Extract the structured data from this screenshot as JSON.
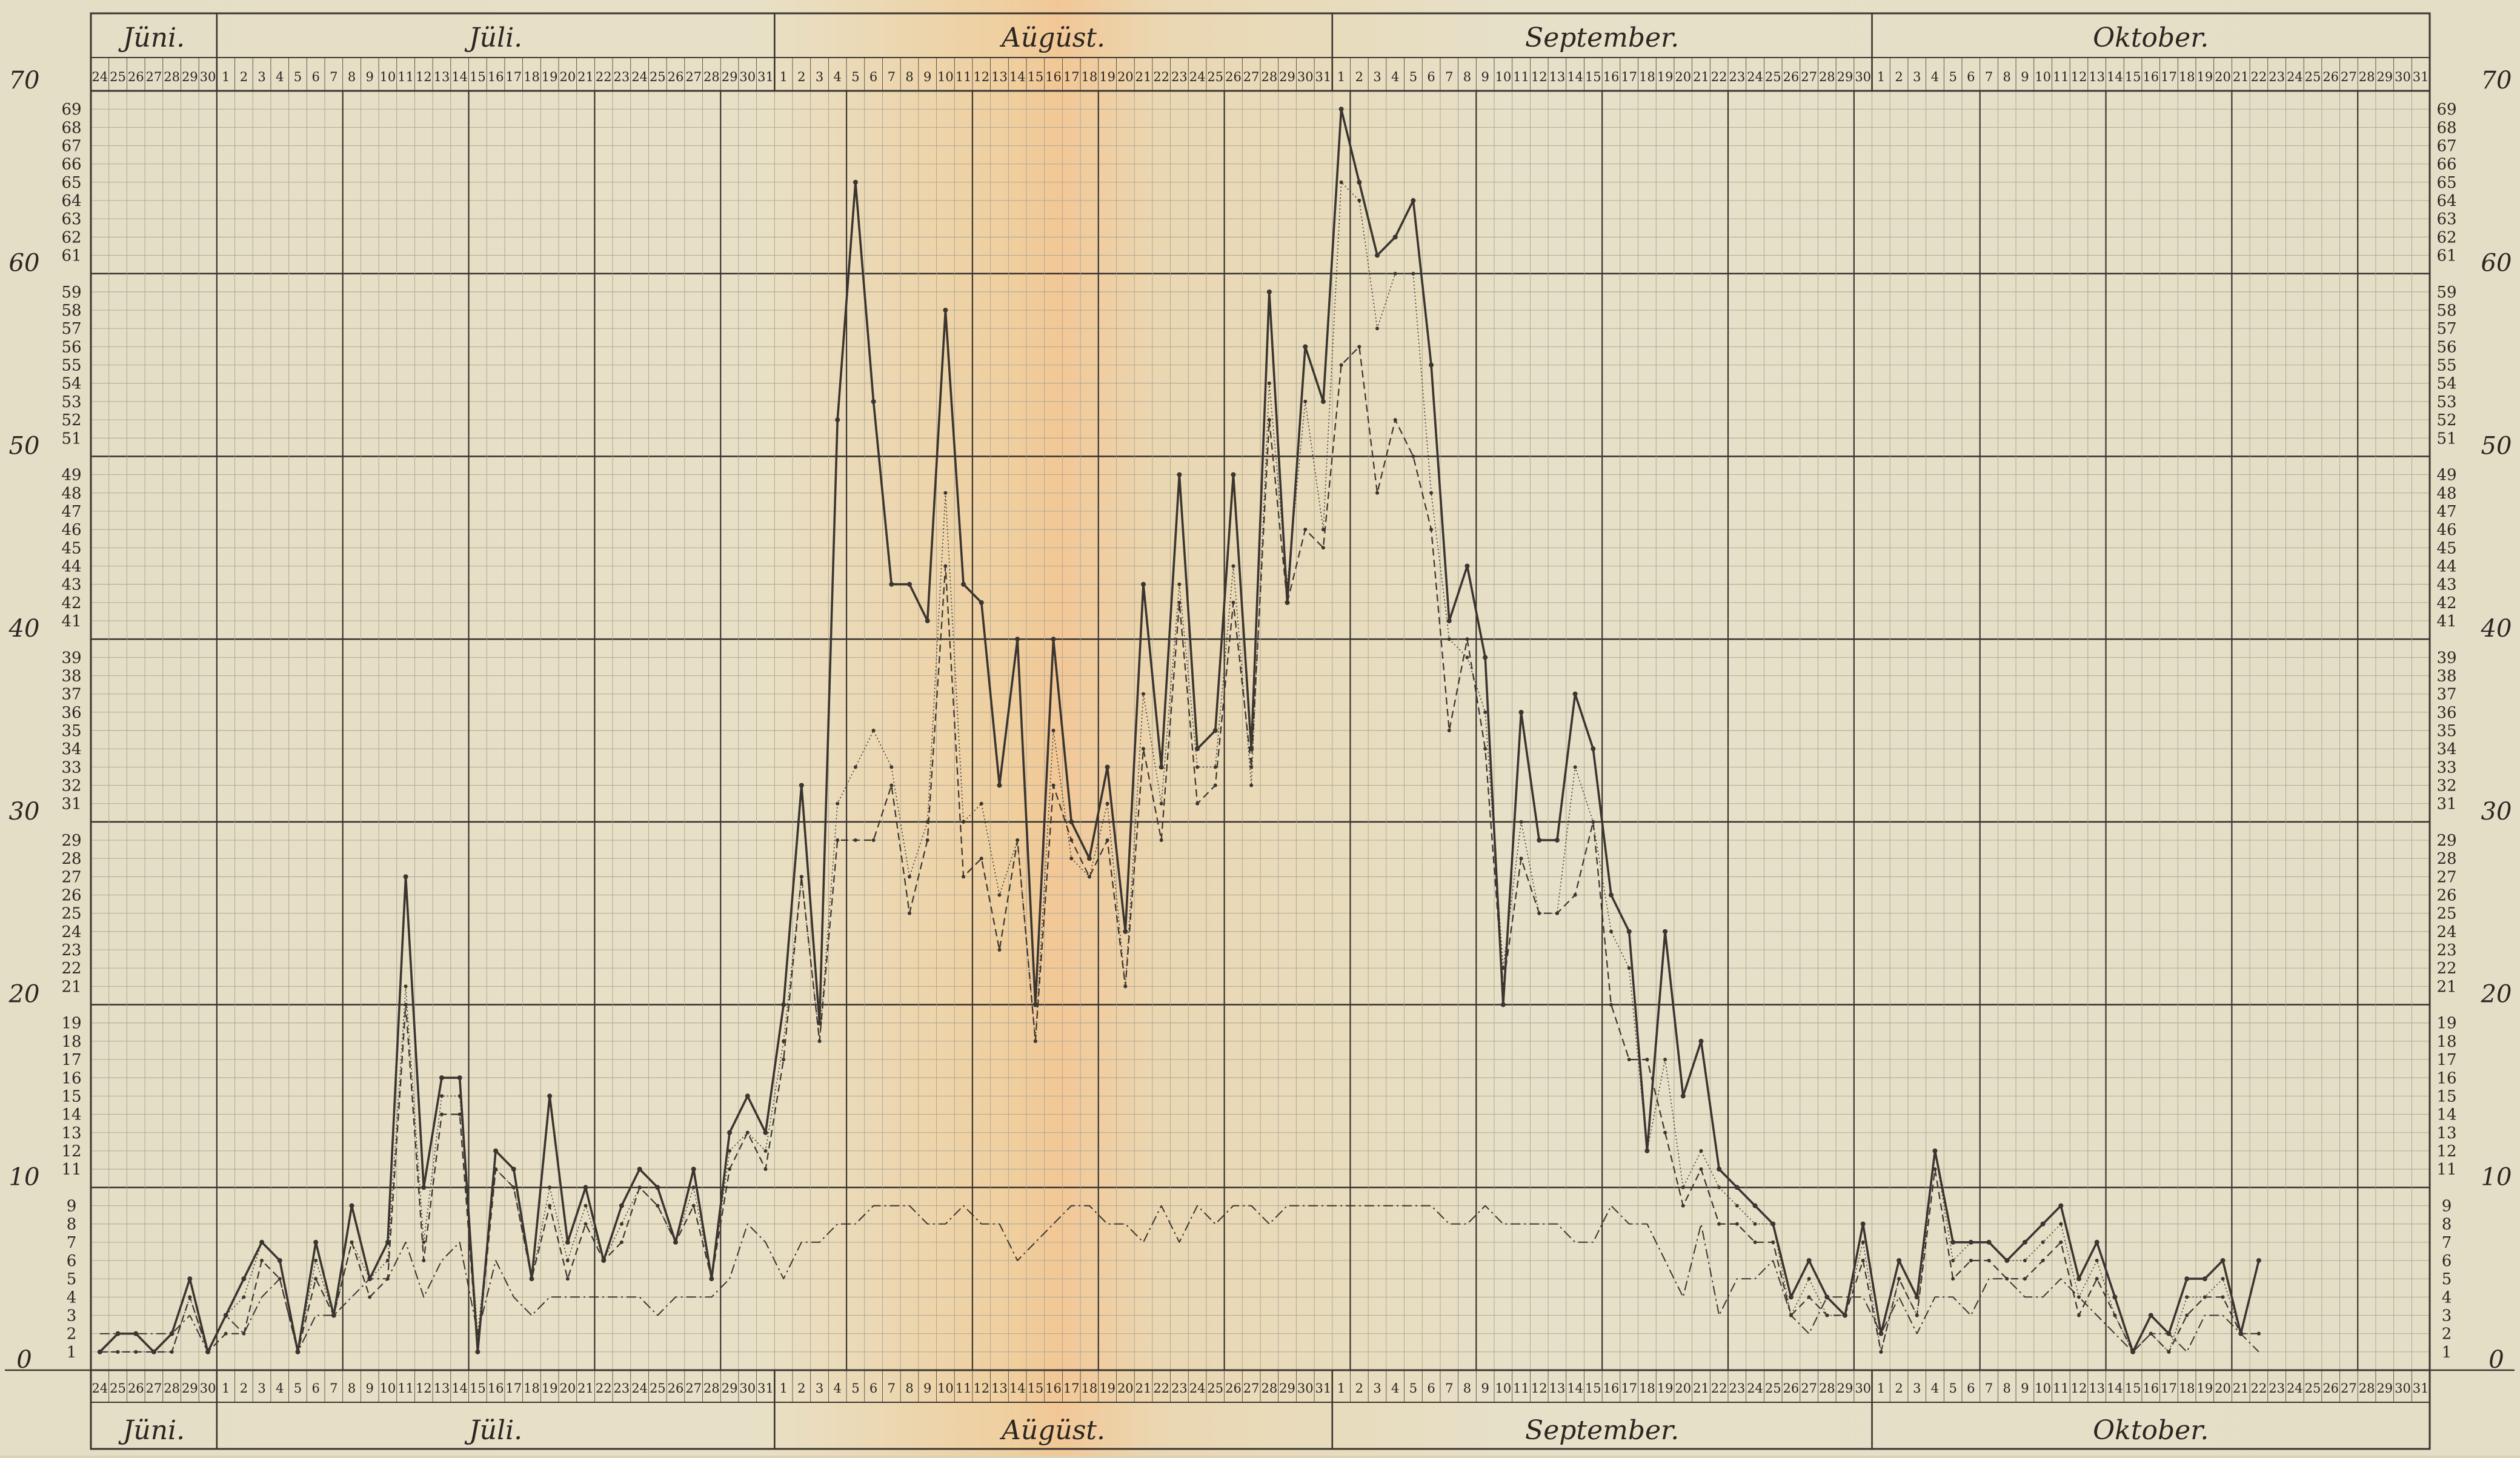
{
  "chart_data": {
    "type": "line",
    "title": "",
    "xlabel": "",
    "ylabel": "",
    "ylim": [
      0,
      70
    ],
    "grid": true,
    "legend": "none",
    "months": [
      {
        "name": "Jüni.",
        "days": [
          "24",
          "25",
          "26",
          "27",
          "28",
          "29",
          "30"
        ]
      },
      {
        "name": "Jüli.",
        "days": [
          "1",
          "2",
          "3",
          "4",
          "5",
          "6",
          "7",
          "8",
          "9",
          "10",
          "11",
          "12",
          "13",
          "14",
          "15",
          "16",
          "17",
          "18",
          "19",
          "20",
          "21",
          "22",
          "23",
          "24",
          "25",
          "26",
          "27",
          "28",
          "29",
          "30",
          "31"
        ]
      },
      {
        "name": "Aügüst.",
        "days": [
          "1",
          "2",
          "3",
          "4",
          "5",
          "6",
          "7",
          "8",
          "9",
          "10",
          "11",
          "12",
          "13",
          "14",
          "15",
          "16",
          "17",
          "18",
          "19",
          "20",
          "21",
          "22",
          "23",
          "24",
          "25",
          "26",
          "27",
          "28",
          "29",
          "30",
          "31"
        ]
      },
      {
        "name": "September.",
        "days": [
          "1",
          "2",
          "3",
          "4",
          "5",
          "6",
          "7",
          "8",
          "9",
          "10",
          "11",
          "12",
          "13",
          "14",
          "15",
          "16",
          "17",
          "18",
          "19",
          "20",
          "21",
          "22",
          "23",
          "24",
          "25",
          "26",
          "27",
          "28",
          "29",
          "30"
        ]
      },
      {
        "name": "Oktober.",
        "days": [
          "1",
          "2",
          "3",
          "4",
          "5",
          "6",
          "7",
          "8",
          "9",
          "10",
          "11",
          "12",
          "13",
          "14",
          "15",
          "16",
          "17",
          "18",
          "19",
          "20",
          "21",
          "22",
          "23",
          "24",
          "25",
          "26",
          "27",
          "28",
          "29",
          "30",
          "31"
        ]
      }
    ],
    "y_major_ticks": [
      "0",
      "10",
      "20",
      "30",
      "40",
      "50",
      "60",
      "70"
    ],
    "series": [
      {
        "values": [
          1,
          2,
          2,
          1,
          2,
          5,
          1,
          3,
          5,
          7,
          6,
          1,
          7,
          3,
          9,
          5,
          7,
          27,
          10,
          16,
          16,
          1,
          12,
          11,
          5,
          15,
          7,
          10,
          6,
          9,
          11,
          10,
          7,
          11,
          5,
          13,
          15,
          13,
          20,
          32,
          19,
          52,
          65,
          53,
          43,
          43,
          41,
          58,
          43,
          42,
          32,
          40,
          20,
          40,
          30,
          28,
          33,
          24,
          43,
          33,
          49,
          34,
          35,
          49,
          34,
          59,
          42,
          56,
          53,
          69,
          65,
          61,
          62,
          64,
          55,
          41,
          44,
          39,
          20,
          36,
          29,
          29,
          37,
          34,
          26,
          24,
          12,
          24,
          15,
          18,
          11,
          10,
          9,
          8,
          4,
          6,
          4,
          3,
          8,
          2,
          6,
          4,
          12,
          7,
          7,
          7,
          6,
          7,
          8,
          9,
          5,
          7,
          4,
          1,
          3,
          2,
          5,
          5,
          6,
          2,
          6
        ],
        "style": "solid"
      },
      {
        "values": [
          1,
          1,
          1,
          1,
          1,
          4,
          1,
          3,
          4,
          7,
          6,
          1,
          6,
          3,
          7,
          5,
          6,
          21,
          7,
          15,
          15,
          2,
          11,
          10,
          5,
          10,
          6,
          9,
          6,
          8,
          10,
          9,
          7,
          10,
          5,
          12,
          13,
          12,
          18,
          27,
          18,
          31,
          33,
          35,
          33,
          27,
          30,
          48,
          30,
          31,
          26,
          29,
          18,
          35,
          28,
          27,
          31,
          21,
          37,
          31,
          43,
          33,
          33,
          44,
          32,
          54,
          43,
          53,
          46,
          65,
          64,
          57,
          60,
          60,
          48,
          40,
          39,
          36,
          22,
          30,
          25,
          25,
          33,
          30,
          24,
          22,
          12,
          17,
          10,
          12,
          10,
          9,
          8,
          8,
          3,
          5,
          3,
          3,
          7,
          1,
          5,
          3,
          12,
          6,
          7,
          7,
          6,
          6,
          7,
          8,
          4,
          6,
          3,
          1,
          2,
          1,
          4,
          4,
          5,
          2,
          2
        ],
        "style": "dotted"
      },
      {
        "values": [
          1,
          1,
          1,
          1,
          1,
          4,
          1,
          2,
          2,
          6,
          5,
          1,
          5,
          3,
          7,
          4,
          5,
          20,
          6,
          14,
          14,
          1,
          11,
          10,
          5,
          9,
          5,
          8,
          6,
          7,
          10,
          9,
          7,
          9,
          5,
          11,
          13,
          11,
          17,
          27,
          18,
          29,
          29,
          29,
          32,
          25,
          29,
          44,
          27,
          28,
          23,
          29,
          18,
          32,
          29,
          27,
          29,
          21,
          34,
          29,
          42,
          31,
          32,
          42,
          33,
          52,
          42,
          46,
          45,
          55,
          56,
          48,
          52,
          50,
          46,
          35,
          40,
          34,
          21,
          28,
          25,
          25,
          26,
          30,
          20,
          17,
          17,
          13,
          9,
          11,
          8,
          8,
          7,
          7,
          3,
          4,
          3,
          3,
          6,
          1,
          5,
          3,
          11,
          5,
          6,
          6,
          5,
          5,
          6,
          7,
          3,
          5,
          3,
          1,
          2,
          1,
          3,
          4,
          4,
          2,
          2
        ],
        "style": "dashed"
      },
      {
        "values": [
          2,
          2,
          2,
          2,
          2,
          3,
          1,
          3,
          2,
          4,
          5,
          1,
          3,
          3,
          4,
          5,
          5,
          7,
          4,
          6,
          7,
          2,
          6,
          4,
          3,
          4,
          4,
          4,
          4,
          4,
          4,
          3,
          4,
          4,
          4,
          5,
          8,
          7,
          5,
          7,
          7,
          8,
          8,
          9,
          9,
          9,
          8,
          8,
          9,
          8,
          8,
          6,
          7,
          8,
          9,
          9,
          8,
          8,
          7,
          9,
          7,
          9,
          8,
          9,
          9,
          8,
          9,
          9,
          9,
          9,
          9,
          9,
          9,
          9,
          9,
          8,
          8,
          9,
          8,
          8,
          8,
          8,
          7,
          7,
          9,
          8,
          8,
          6,
          4,
          8,
          3,
          5,
          5,
          6,
          3,
          2,
          4,
          4,
          4,
          2,
          4,
          2,
          4,
          4,
          3,
          5,
          5,
          4,
          4,
          5,
          4,
          3,
          2,
          1,
          2,
          2,
          1,
          3,
          3,
          2,
          1
        ],
        "style": "dashdot"
      }
    ]
  }
}
